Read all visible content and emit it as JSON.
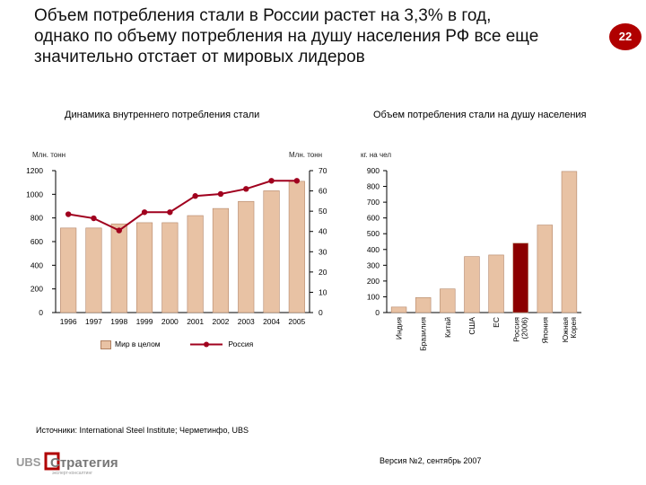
{
  "header": {
    "title_lines": [
      "Объем потребления стали в России растет на 3,3% в год,",
      "однако по объему потребления на душу населения РФ все еще",
      "значительно отстает от мировых лидеров"
    ],
    "page_number": "22"
  },
  "colors": {
    "bar": "#e8c2a4",
    "bar_edge": "#b4876a",
    "line": "#a0001e",
    "highlight_bar": "#8b0000",
    "axis": "#000000",
    "badge": "#b00000"
  },
  "chart_data": [
    {
      "type": "bar",
      "title": "Динамика внутреннего потребления стали",
      "left_unit": "Млн. тонн",
      "right_unit": "Млн. тонн",
      "categories": [
        "1996",
        "1997",
        "1998",
        "1999",
        "2000",
        "2001",
        "2002",
        "2003",
        "2004",
        "2005"
      ],
      "left_ticks": [
        "0",
        "200",
        "400",
        "600",
        "800",
        "1000",
        "1200"
      ],
      "right_ticks": [
        "0",
        "10",
        "20",
        "30",
        "40",
        "50",
        "60",
        "70"
      ],
      "ylim_left": [
        0,
        1200
      ],
      "ylim_right": [
        0,
        70
      ],
      "series": [
        {
          "name": "Мир в целом",
          "type": "bar",
          "axis": "left",
          "values": [
            715,
            715,
            750,
            760,
            760,
            820,
            880,
            940,
            1030,
            1110
          ]
        },
        {
          "name": "Россия",
          "type": "line",
          "axis": "right",
          "values": [
            48.5,
            46.5,
            40.5,
            49.5,
            49.5,
            57.5,
            58.5,
            61,
            65,
            65
          ]
        }
      ]
    },
    {
      "type": "bar",
      "title": "Объем потребления стали на душу населения",
      "unit": "кг. на чел",
      "ticks": [
        "0",
        "100",
        "200",
        "300",
        "400",
        "500",
        "600",
        "700",
        "800",
        "900"
      ],
      "ylim": [
        0,
        900
      ],
      "categories": [
        {
          "lines": [
            "Индия"
          ]
        },
        {
          "lines": [
            "Бразилия"
          ]
        },
        {
          "lines": [
            "Китай"
          ]
        },
        {
          "lines": [
            "США"
          ]
        },
        {
          "lines": [
            "ЕС"
          ]
        },
        {
          "lines": [
            "Россия",
            "(2006)"
          ]
        },
        {
          "lines": [
            "Япония"
          ]
        },
        {
          "lines": [
            "Южная",
            "Корея"
          ]
        }
      ],
      "values": [
        35,
        95,
        150,
        355,
        365,
        440,
        555,
        895
      ],
      "highlight_index": 5
    }
  ],
  "footer": {
    "source": "Источники: International Steel Institute; Черметинфо, UBS",
    "version": "Версия №2, сентябрь 2007",
    "logo_text": "Стратегия",
    "logo_prefix": "UBS",
    "logo_subtitle": "эксперт-консалтинг"
  }
}
